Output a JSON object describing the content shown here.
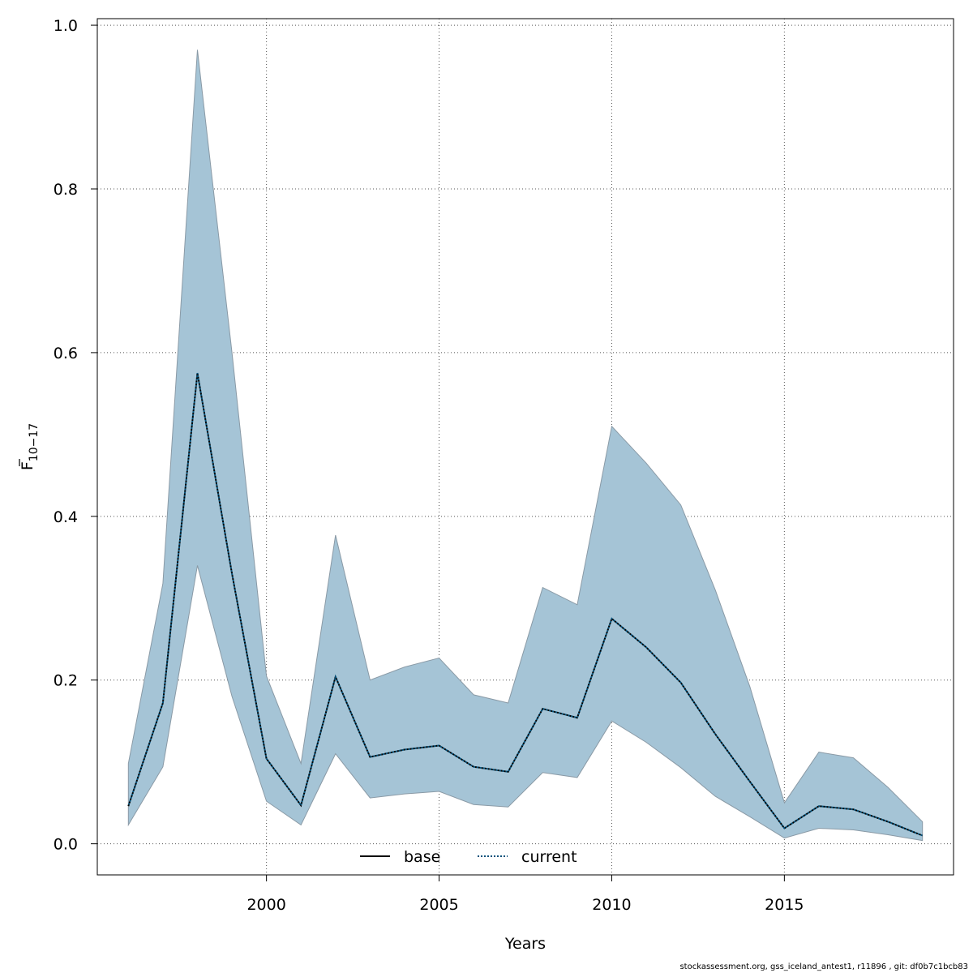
{
  "chart_data": {
    "type": "area",
    "xlabel": "Years",
    "ylabel_main": "F",
    "ylabel_subscript": "10−17",
    "xlim": [
      1995.1,
      2019.9
    ],
    "ylim": [
      -0.038,
      1.008
    ],
    "x_ticks": [
      2000,
      2005,
      2010,
      2015
    ],
    "y_ticks": [
      0.0,
      0.2,
      0.4,
      0.6,
      0.8,
      1.0
    ],
    "y_tick_labels": [
      "0.0",
      "0.2",
      "0.4",
      "0.6",
      "0.8",
      "1.0"
    ],
    "grid": true,
    "legend_position": "bottom-center",
    "legend": [
      {
        "label": "base",
        "style": "solid",
        "color": "#000000"
      },
      {
        "label": "current",
        "style": "dotted",
        "color": "#00507a"
      }
    ],
    "band_color": "#a5c4d6",
    "band_edge_color": "#8a9aa6",
    "x": [
      1996,
      1997,
      1998,
      1999,
      2000,
      2001,
      2002,
      2003,
      2004,
      2005,
      2006,
      2007,
      2008,
      2009,
      2010,
      2011,
      2012,
      2013,
      2014,
      2015,
      2016,
      2017,
      2018,
      2019
    ],
    "series": [
      {
        "name": "current",
        "values": [
          0.046,
          0.172,
          0.575,
          0.33,
          0.104,
          0.047,
          0.204,
          0.106,
          0.115,
          0.12,
          0.094,
          0.088,
          0.165,
          0.154,
          0.275,
          0.24,
          0.197,
          0.134,
          0.076,
          0.019,
          0.046,
          0.042,
          0.027,
          0.01
        ]
      }
    ],
    "band": {
      "lower": [
        0.023,
        0.094,
        0.34,
        0.18,
        0.052,
        0.023,
        0.11,
        0.056,
        0.061,
        0.064,
        0.048,
        0.045,
        0.087,
        0.081,
        0.15,
        0.124,
        0.093,
        0.058,
        0.033,
        0.007,
        0.019,
        0.017,
        0.011,
        0.004
      ],
      "upper": [
        0.098,
        0.318,
        0.97,
        0.6,
        0.205,
        0.098,
        0.377,
        0.2,
        0.216,
        0.227,
        0.182,
        0.172,
        0.313,
        0.292,
        0.51,
        0.465,
        0.414,
        0.31,
        0.192,
        0.05,
        0.112,
        0.105,
        0.069,
        0.027
      ]
    }
  },
  "footer_text": "stockassessment.org, gss_iceland_antest1, r11896 , git: df0b7c1bcb83"
}
